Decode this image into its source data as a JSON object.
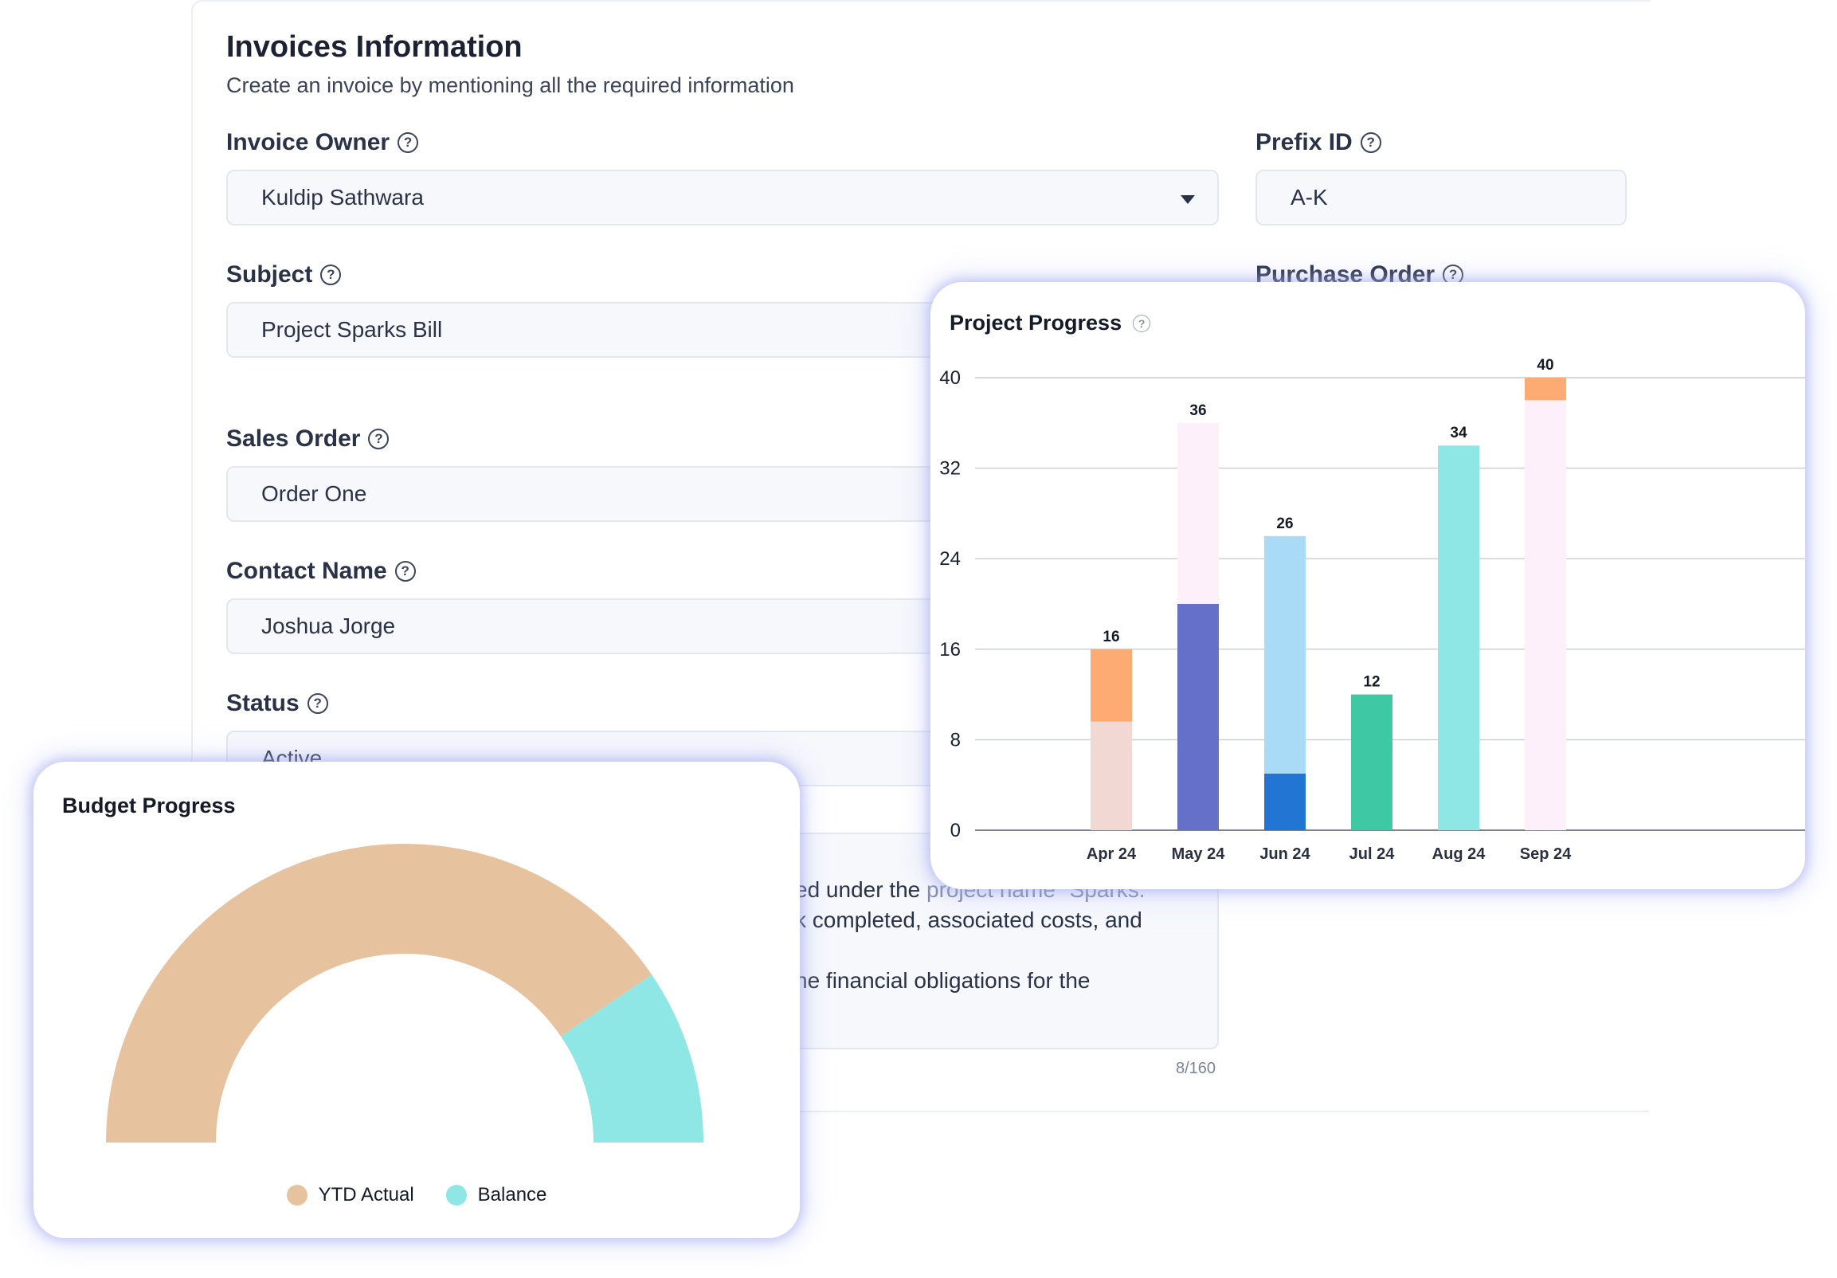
{
  "form": {
    "title": "Invoices Information",
    "subtitle": "Create an invoice by mentioning all the required information",
    "help_glyph": "?",
    "fields": {
      "invoice_owner": {
        "label": "Invoice Owner",
        "value": "Kuldip Sathwara"
      },
      "prefix_id": {
        "label": "Prefix ID",
        "value": "A-K"
      },
      "subject": {
        "label": "Subject",
        "value": "Project Sparks Bill"
      },
      "purchase_order": {
        "label": "Purchase Order"
      },
      "sales_order": {
        "label": "Sales Order",
        "value": "Order One"
      },
      "contact_name": {
        "label": "Contact Name",
        "value": "Joshua Jorge"
      },
      "status": {
        "label": "Status",
        "value": "Active"
      }
    },
    "description": {
      "line1": "ed under the ",
      "line1_muted": "project name \"Sparks.",
      "line2": "k completed, associated costs, and",
      "line3": "he financial obligations for the",
      "char_count": "8/160"
    }
  },
  "project_progress": {
    "title": "Project Progress",
    "help_glyph": "?"
  },
  "budget_progress": {
    "title": "Budget Progress"
  },
  "chart_data": [
    {
      "type": "bar",
      "title": "Project Progress",
      "categories": [
        "Apr 24",
        "May 24",
        "Jun 24",
        "Jul 24",
        "Aug 24",
        "Sep 24"
      ],
      "stacked": true,
      "segments": [
        [
          {
            "value": 9.6,
            "color": "#f2d8d3"
          },
          {
            "value": 6.4,
            "color": "#fdab73"
          }
        ],
        [
          {
            "value": 20,
            "color": "#6570c8"
          },
          {
            "value": 16,
            "color": "#fdf0fb"
          }
        ],
        [
          {
            "value": 5,
            "color": "#2275d2"
          },
          {
            "value": 21,
            "color": "#a9dbf7"
          }
        ],
        [
          {
            "value": 12,
            "color": "#3ec8a3"
          }
        ],
        [
          {
            "value": 34,
            "color": "#8ee6e5"
          }
        ],
        [
          {
            "value": 38,
            "color": "#fdf0fb"
          },
          {
            "value": 2,
            "color": "#fdab73"
          }
        ]
      ],
      "totals": [
        16,
        36,
        26,
        12,
        34,
        40
      ],
      "yticks": [
        0,
        8,
        16,
        24,
        32,
        40
      ],
      "ylim": [
        0,
        40
      ],
      "grid": true
    },
    {
      "type": "pie",
      "title": "Budget Progress",
      "style": "semicircle-donut",
      "labels": [
        "YTD Actual",
        "Balance"
      ],
      "values": [
        81,
        19
      ],
      "colors": [
        "#e6c39e",
        "#8ee6e5"
      ],
      "legend": "bottom"
    }
  ]
}
